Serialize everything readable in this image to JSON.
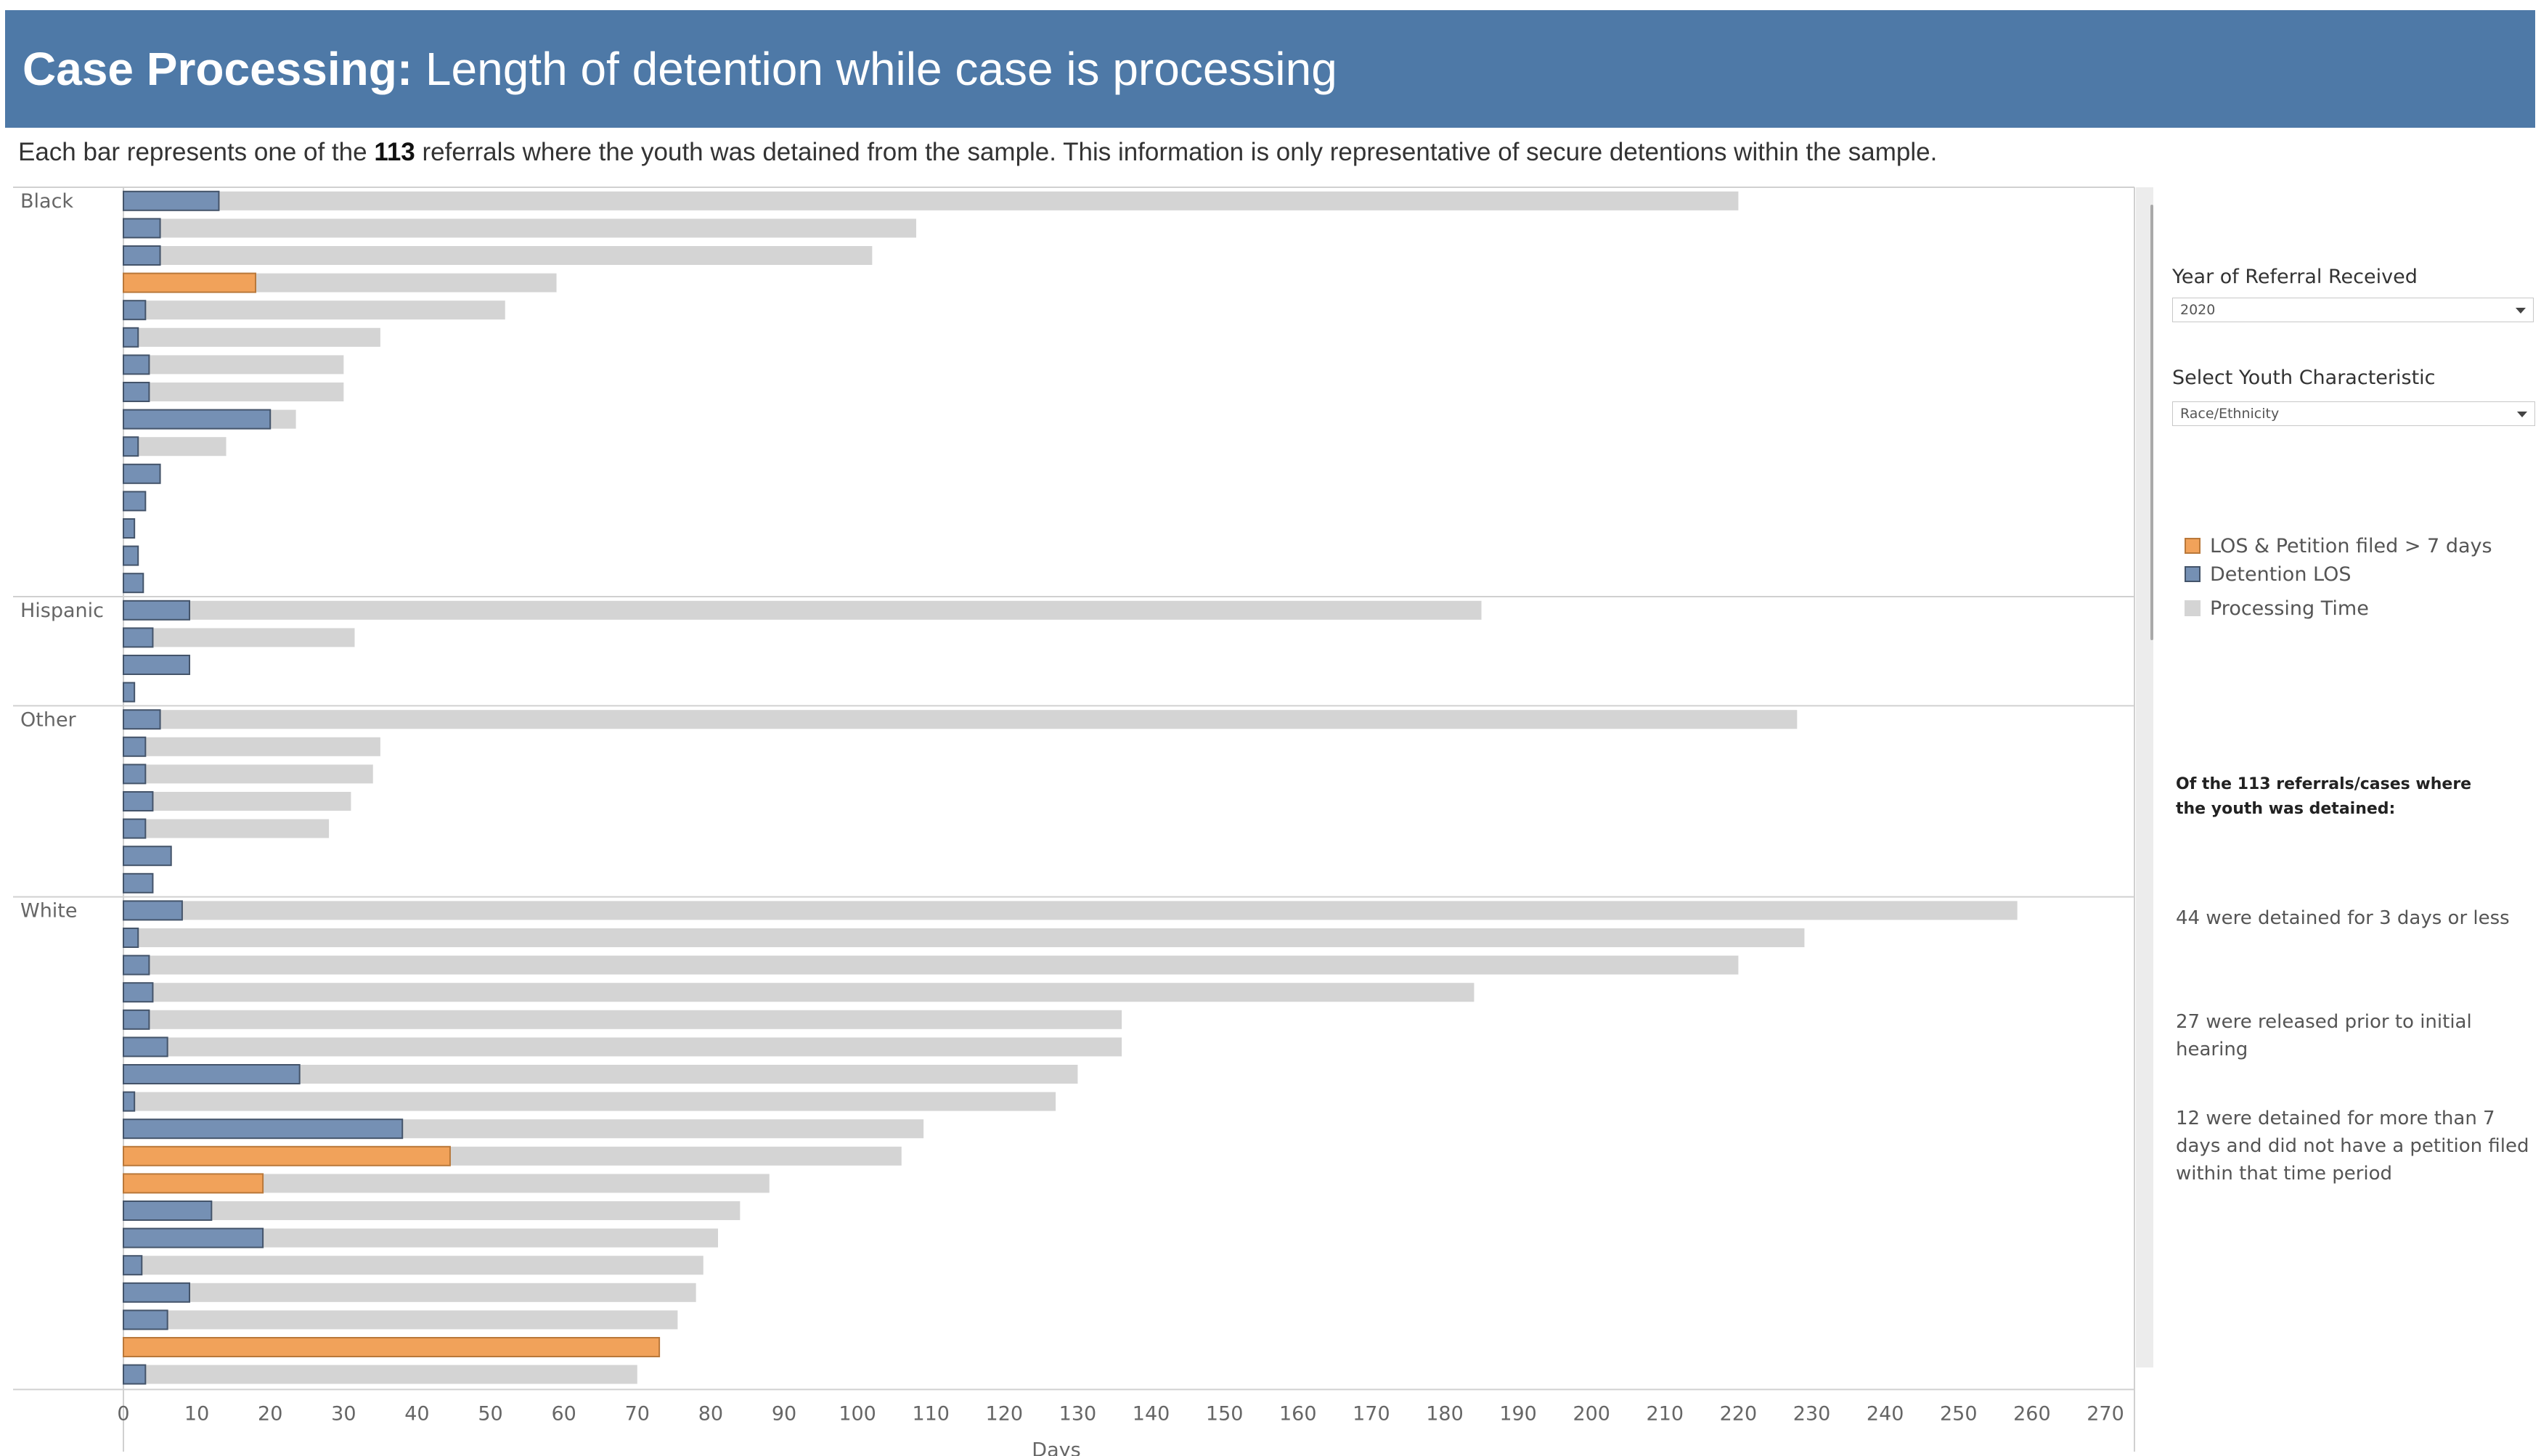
{
  "header": {
    "title_bold": "Case Processing:",
    "title_rest": " Length of detention while case is processing",
    "bg_color": "#4e79a7"
  },
  "subtitle": {
    "before": "Each bar represents one of the ",
    "count": "113",
    "after": " referrals where the youth was detained from the sample. This information is only representative of secure detentions within the sample."
  },
  "filters": {
    "year_label": "Year of Referral Received",
    "year_value": "2020",
    "characteristic_label": "Select Youth Characteristic",
    "characteristic_value": "Race/Ethnicity"
  },
  "legend": [
    {
      "label": "LOS & Petition filed > 7 days",
      "color": "#f1a25a",
      "border": "#b9783a"
    },
    {
      "label": "Detention LOS",
      "color": "#7590b4",
      "border": "#44546a"
    },
    {
      "label": "Processing Time",
      "color": "#d4d4d4",
      "border": "#d4d4d4"
    }
  ],
  "notes": {
    "heading": "Of the 113 referrals/cases where the youth was detained:",
    "items": [
      "44 were detained for 3 days or less",
      "27 were released prior to initial hearing",
      "12 were detained for more than 7 days and did not have a petition filed within that time period"
    ]
  },
  "chart_data": {
    "type": "bar",
    "orientation": "horizontal",
    "xlabel": "Days",
    "xlim": [
      0,
      270
    ],
    "xticks": [
      0,
      10,
      20,
      30,
      40,
      50,
      60,
      70,
      80,
      90,
      100,
      110,
      120,
      130,
      140,
      150,
      160,
      170,
      180,
      190,
      200,
      210,
      220,
      230,
      240,
      250,
      260,
      270
    ],
    "series_names": [
      "Processing Time",
      "Detention LOS",
      "LOS & Petition filed > 7 days"
    ],
    "colors": {
      "processing": "#d4d4d4",
      "detention": "#7590b4",
      "detention_border": "#44546a",
      "flag": "#f1a25a",
      "flag_border": "#b9783a"
    },
    "groups": [
      {
        "name": "Black",
        "rows": [
          {
            "processing": 220,
            "detention": 13,
            "flag": false
          },
          {
            "processing": 108,
            "detention": 5,
            "flag": false
          },
          {
            "processing": 102,
            "detention": 5,
            "flag": false
          },
          {
            "processing": 59,
            "detention": 18,
            "flag": true
          },
          {
            "processing": 52,
            "detention": 3,
            "flag": false
          },
          {
            "processing": 35,
            "detention": 2,
            "flag": false
          },
          {
            "processing": 30,
            "detention": 3.5,
            "flag": false
          },
          {
            "processing": 30,
            "detention": 3.5,
            "flag": false
          },
          {
            "processing": 23.5,
            "detention": 20,
            "flag": false
          },
          {
            "processing": 14,
            "detention": 2,
            "flag": false
          },
          {
            "processing": 0,
            "detention": 5,
            "flag": false
          },
          {
            "processing": 0,
            "detention": 3,
            "flag": false
          },
          {
            "processing": 0,
            "detention": 1.5,
            "flag": false
          },
          {
            "processing": 0,
            "detention": 2,
            "flag": false
          },
          {
            "processing": 0,
            "detention": 2.7,
            "flag": false
          }
        ]
      },
      {
        "name": "Hispanic",
        "rows": [
          {
            "processing": 185,
            "detention": 9,
            "flag": false
          },
          {
            "processing": 31.5,
            "detention": 4,
            "flag": false
          },
          {
            "processing": 0,
            "detention": 9,
            "flag": false
          },
          {
            "processing": 0,
            "detention": 1.5,
            "flag": false
          }
        ]
      },
      {
        "name": "Other",
        "rows": [
          {
            "processing": 228,
            "detention": 5,
            "flag": false
          },
          {
            "processing": 35,
            "detention": 3,
            "flag": false
          },
          {
            "processing": 34,
            "detention": 3,
            "flag": false
          },
          {
            "processing": 31,
            "detention": 4,
            "flag": false
          },
          {
            "processing": 28,
            "detention": 3,
            "flag": false
          },
          {
            "processing": 0,
            "detention": 6.5,
            "flag": false
          },
          {
            "processing": 0,
            "detention": 4,
            "flag": false
          }
        ]
      },
      {
        "name": "White",
        "rows": [
          {
            "processing": 258,
            "detention": 8,
            "flag": false
          },
          {
            "processing": 229,
            "detention": 2,
            "flag": false
          },
          {
            "processing": 220,
            "detention": 3.5,
            "flag": false
          },
          {
            "processing": 184,
            "detention": 4,
            "flag": false
          },
          {
            "processing": 136,
            "detention": 3.5,
            "flag": false
          },
          {
            "processing": 136,
            "detention": 6,
            "flag": false
          },
          {
            "processing": 130,
            "detention": 24,
            "flag": false
          },
          {
            "processing": 127,
            "detention": 1.5,
            "flag": false
          },
          {
            "processing": 109,
            "detention": 38,
            "flag": false
          },
          {
            "processing": 106,
            "detention": 44.5,
            "flag": true
          },
          {
            "processing": 88,
            "detention": 19,
            "flag": true
          },
          {
            "processing": 84,
            "detention": 12,
            "flag": false
          },
          {
            "processing": 81,
            "detention": 19,
            "flag": false
          },
          {
            "processing": 79,
            "detention": 2.5,
            "flag": false
          },
          {
            "processing": 78,
            "detention": 9,
            "flag": false
          },
          {
            "processing": 75.5,
            "detention": 6,
            "flag": false
          },
          {
            "processing": 0,
            "detention": 73,
            "flag": true
          },
          {
            "processing": 70,
            "detention": 3,
            "flag": false
          }
        ]
      }
    ]
  }
}
